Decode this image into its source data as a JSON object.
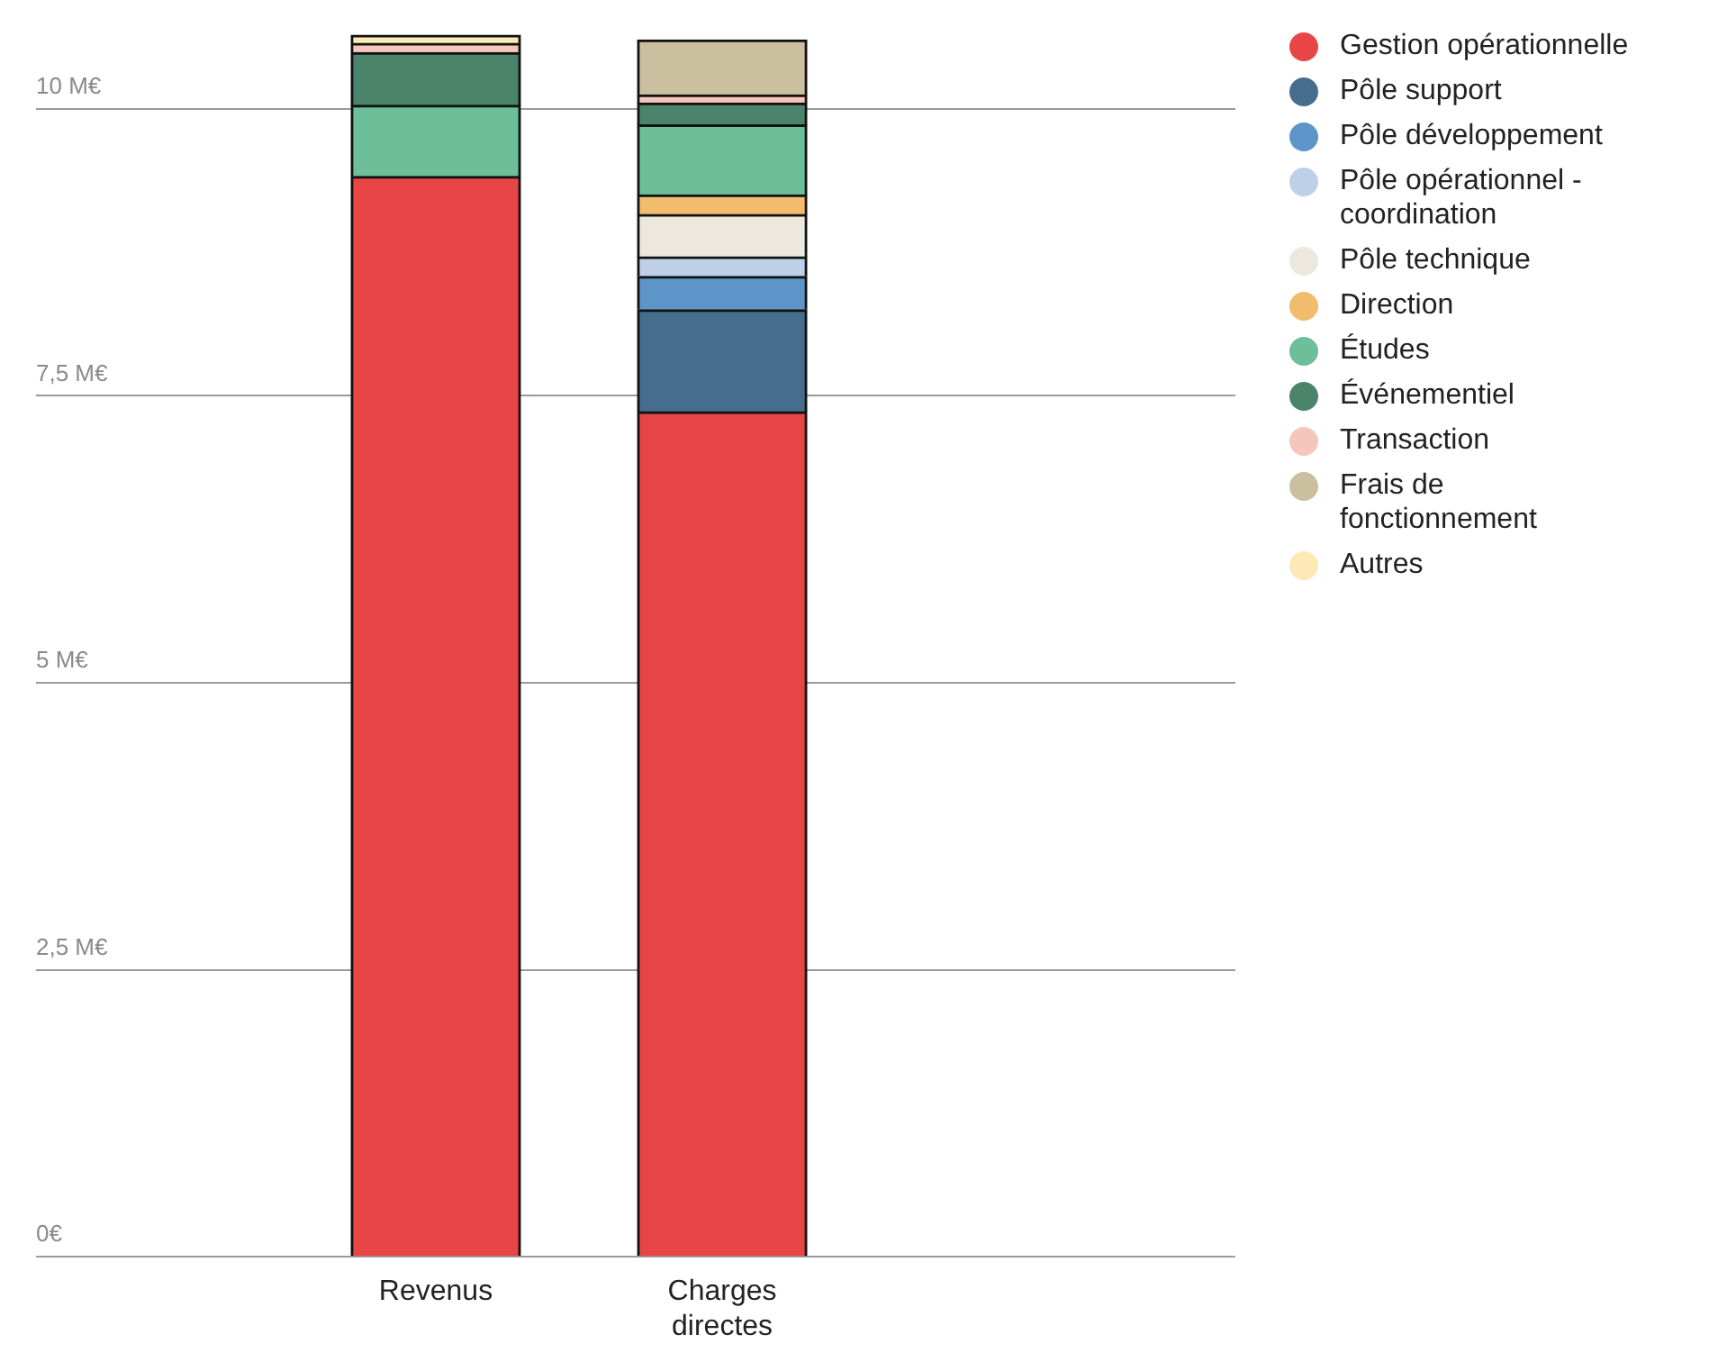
{
  "chart_data": {
    "type": "bar",
    "stacked": true,
    "categories": [
      "Revenus",
      "Charges directes"
    ],
    "ylim": [
      0,
      10.7
    ],
    "yticks": [
      {
        "value": 0,
        "label": "0€"
      },
      {
        "value": 2.5,
        "label": "2,5 M€"
      },
      {
        "value": 5,
        "label": "5 M€"
      },
      {
        "value": 7.5,
        "label": "7,5 M€"
      },
      {
        "value": 10,
        "label": "10 M€"
      }
    ],
    "grid": "y",
    "legend": "top right",
    "series": [
      {
        "name": "Gestion opérationnelle",
        "color": "#e84646",
        "values": [
          9.41,
          7.36
        ]
      },
      {
        "name": "Pôle support",
        "color": "#466c8e",
        "values": [
          null,
          0.89
        ]
      },
      {
        "name": "Pôle développement",
        "color": "#5e95c9",
        "values": [
          null,
          0.29
        ]
      },
      {
        "name": "Pôle opérationnel - coordination",
        "color": "#bdd0e8",
        "values": [
          null,
          0.17
        ]
      },
      {
        "name": "Pôle technique",
        "color": "#ece8de",
        "values": [
          null,
          0.37
        ]
      },
      {
        "name": "Direction",
        "color": "#f1bd6c",
        "values": [
          null,
          0.17
        ]
      },
      {
        "name": "Études",
        "color": "#6cbf98",
        "values": [
          0.62,
          0.61
        ]
      },
      {
        "name": "Événementiel",
        "color": "#4a846a",
        "values": [
          0.46,
          0.19
        ]
      },
      {
        "name": "Transaction",
        "color": "#f5c6bb",
        "values": [
          0.08,
          0.07
        ]
      },
      {
        "name": "Frais de fonctionnement",
        "color": "#cabf9f",
        "values": [
          null,
          0.48
        ]
      },
      {
        "name": "Autres",
        "color": "#fde9b6",
        "values": [
          0.07,
          null
        ]
      }
    ]
  }
}
